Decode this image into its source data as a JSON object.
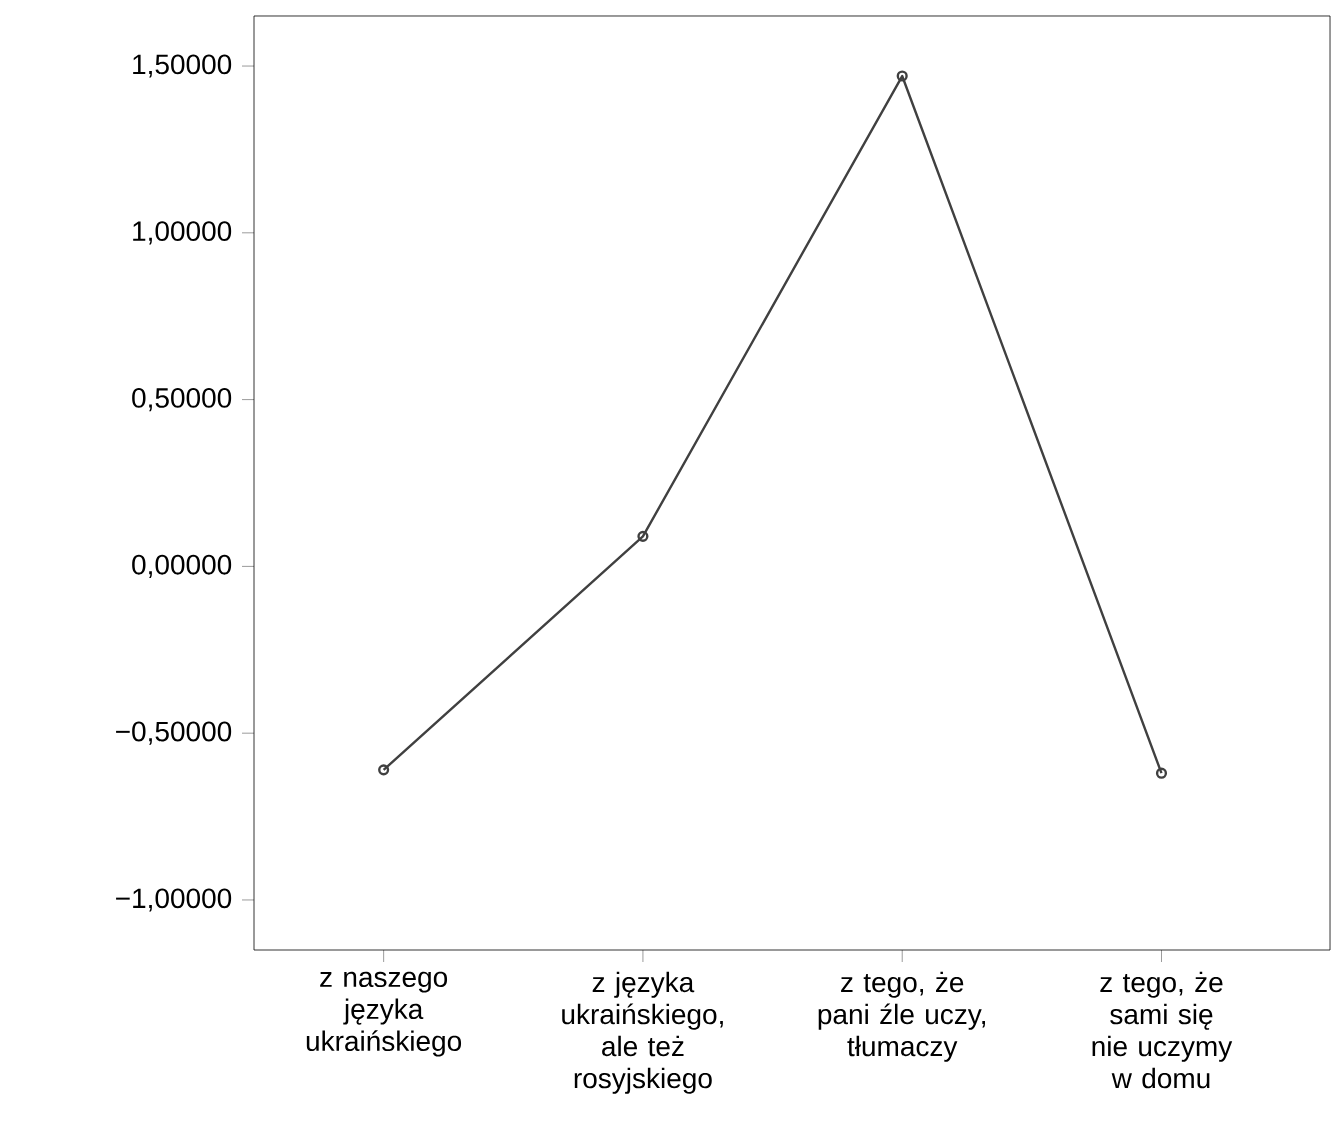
{
  "chart_data": {
    "type": "line",
    "categories": [
      "z naszego języka ukraińskiego",
      "z języka ukraińskiego, ale też rosyjskiego",
      "z tego, że pani źle uczy, tłumaczy",
      "z tego, że sami się nie uczymy w domu"
    ],
    "values": [
      -0.61,
      0.09,
      1.47,
      -0.62
    ],
    "color": "#404040",
    "ylim": [
      -1.15,
      1.65
    ],
    "yticks": [
      {
        "value": -1.0,
        "label": "−1,00000"
      },
      {
        "value": -0.5,
        "label": "−0,50000"
      },
      {
        "value": 0,
        "label": "0,00000"
      },
      {
        "value": 0.5,
        "label": "0,50000"
      },
      {
        "value": 1.0,
        "label": "1,00000"
      },
      {
        "value": 1.5,
        "label": "1,50000"
      }
    ],
    "marker": "circle",
    "grid": false
  }
}
